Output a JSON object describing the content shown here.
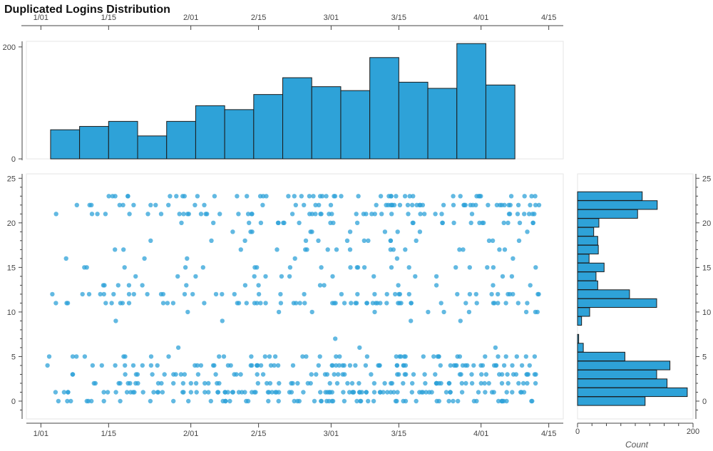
{
  "title": "Duplicated Logins Distribution",
  "chart_data": [
    {
      "name": "top-histogram",
      "type": "bar",
      "x_tick_labels": [
        "1/01",
        "1/15",
        "2/01",
        "2/15",
        "3/01",
        "3/15",
        "4/01",
        "4/15"
      ],
      "x_tick_dates": [
        "2020-01-01",
        "2020-01-15",
        "2020-02-01",
        "2020-02-15",
        "2020-03-01",
        "2020-03-15",
        "2020-04-01",
        "2020-04-15"
      ],
      "bins": [
        {
          "start": "2020-01-03",
          "end": "2020-01-09",
          "value": 52
        },
        {
          "start": "2020-01-09",
          "end": "2020-01-15",
          "value": 58
        },
        {
          "start": "2020-01-15",
          "end": "2020-01-21",
          "value": 67
        },
        {
          "start": "2020-01-21",
          "end": "2020-01-27",
          "value": 41
        },
        {
          "start": "2020-01-27",
          "end": "2020-02-02",
          "value": 67
        },
        {
          "start": "2020-02-02",
          "end": "2020-02-08",
          "value": 95
        },
        {
          "start": "2020-02-08",
          "end": "2020-02-14",
          "value": 88
        },
        {
          "start": "2020-02-14",
          "end": "2020-02-20",
          "value": 115
        },
        {
          "start": "2020-02-20",
          "end": "2020-02-26",
          "value": 145
        },
        {
          "start": "2020-02-26",
          "end": "2020-03-03",
          "value": 129
        },
        {
          "start": "2020-03-03",
          "end": "2020-03-09",
          "value": 122
        },
        {
          "start": "2020-03-09",
          "end": "2020-03-15",
          "value": 181
        },
        {
          "start": "2020-03-15",
          "end": "2020-03-21",
          "value": 137
        },
        {
          "start": "2020-03-21",
          "end": "2020-03-27",
          "value": 126
        },
        {
          "start": "2020-03-27",
          "end": "2020-04-02",
          "value": 206
        },
        {
          "start": "2020-04-02",
          "end": "2020-04-08",
          "value": 132
        }
      ],
      "y_ticks": [
        0,
        200
      ],
      "ylim": [
        0,
        210
      ],
      "xlim": [
        "2019-12-29",
        "2020-04-18"
      ]
    },
    {
      "name": "scatter",
      "type": "scatter",
      "x_tick_labels": [
        "1/01",
        "1/15",
        "2/01",
        "2/15",
        "3/01",
        "3/15",
        "4/01",
        "4/15"
      ],
      "y_ticks": [
        0,
        5,
        10,
        15,
        20,
        25
      ],
      "ylim": [
        -2,
        25.5
      ],
      "xlim": [
        "2019-12-29",
        "2020-04-18"
      ],
      "x_range": [
        "2020-01-02",
        "2020-04-13"
      ],
      "hour_weights": [
        [
          0,
          117
        ],
        [
          1,
          190
        ],
        [
          2,
          155
        ],
        [
          3,
          137
        ],
        [
          4,
          160
        ],
        [
          5,
          82
        ],
        [
          6,
          10
        ],
        [
          7,
          2
        ],
        [
          8,
          0
        ],
        [
          9,
          7
        ],
        [
          10,
          21
        ],
        [
          11,
          137
        ],
        [
          12,
          90
        ],
        [
          13,
          35
        ],
        [
          14,
          32
        ],
        [
          15,
          46
        ],
        [
          16,
          20
        ],
        [
          17,
          36
        ],
        [
          18,
          35
        ],
        [
          19,
          28
        ],
        [
          20,
          37
        ],
        [
          21,
          104
        ],
        [
          22,
          138
        ],
        [
          23,
          112
        ]
      ],
      "points_hint": "Blue dots of login events per date (x) and hour of day (y)."
    },
    {
      "name": "right-histogram",
      "type": "bar",
      "orientation": "horizontal",
      "categories": [
        0,
        1,
        2,
        3,
        4,
        5,
        6,
        7,
        8,
        9,
        10,
        11,
        12,
        13,
        14,
        15,
        16,
        17,
        18,
        19,
        20,
        21,
        22,
        23
      ],
      "values": [
        117,
        190,
        155,
        137,
        160,
        82,
        10,
        2,
        0,
        7,
        21,
        137,
        90,
        35,
        32,
        46,
        20,
        36,
        35,
        28,
        37,
        104,
        138,
        112
      ],
      "x_ticks": [
        0,
        200
      ],
      "xlim": [
        0,
        200
      ],
      "xlabel": "Count",
      "y_ticks": [
        0,
        5,
        10,
        15,
        20,
        25
      ]
    }
  ],
  "colors": {
    "bar_fill": "#2ea2d8",
    "bar_stroke": "#1a1a1a",
    "point_fill": "#2ea2d8",
    "axis": "#444444",
    "frame": "#e6e6e6"
  }
}
